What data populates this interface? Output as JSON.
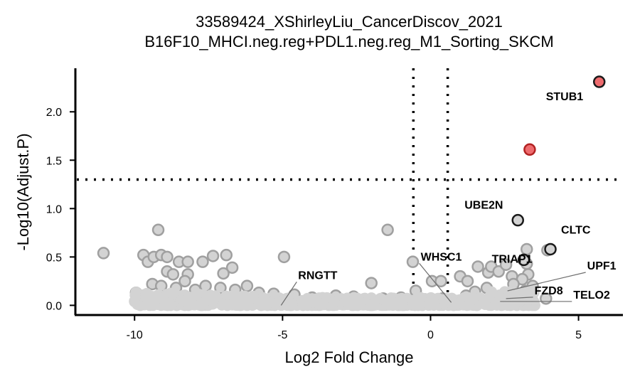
{
  "chart_data": {
    "type": "scatter",
    "title": "33589424_XShirleyLiu_CancerDiscov_2021",
    "subtitle": "B16F10_MHCI.neg.reg+PDL1.neg.reg_M1_Sorting_SKCM",
    "xlabel": "Log2 Fold Change",
    "ylabel": "-Log10(Adjust.P)",
    "xlim": [
      -12,
      6.5
    ],
    "ylim": [
      -0.1,
      2.45
    ],
    "x_ticks": [
      "-10",
      "-5",
      "0",
      "5"
    ],
    "x_tick_values": [
      -10,
      -5,
      0,
      5
    ],
    "y_ticks": [
      "0.0",
      "0.5",
      "1.0",
      "1.5",
      "2.0"
    ],
    "y_tick_values": [
      0,
      0.5,
      1.0,
      1.5,
      2.0
    ],
    "thresholds": {
      "x": [
        -0.58,
        0.58
      ],
      "y": 1.3
    },
    "colors": {
      "significant_fill": "#ee6b6e",
      "significant_edge": "#b22222",
      "labeled_fill": "#d3d3d3",
      "labeled_edge": "#1a1a1a",
      "background_fill": "#d3d3d3",
      "background_edge": "#a0a0a0"
    },
    "significant_points": [
      {
        "x": 5.7,
        "y": 2.31,
        "label": "STUB1"
      },
      {
        "x": 3.35,
        "y": 1.61,
        "label": ""
      }
    ],
    "labeled_points": [
      {
        "x": 2.95,
        "y": 0.88,
        "label": "UBE2N"
      },
      {
        "x": 4.05,
        "y": 0.58,
        "label": "CLTC"
      },
      {
        "x": 3.15,
        "y": 0.47,
        "label": "TRIAP1"
      },
      {
        "x": 2.6,
        "y": 0.15,
        "label": "UPF1"
      },
      {
        "x": 2.55,
        "y": 0.07,
        "label": "FZD8"
      },
      {
        "x": 2.35,
        "y": 0.04,
        "label": "TELO2"
      },
      {
        "x": 0.7,
        "y": 0.03,
        "label": "WHSC1"
      },
      {
        "x": -5.05,
        "y": 0.0,
        "label": "RNGTT"
      }
    ],
    "background_points": [
      [
        -11.05,
        0.54
      ],
      [
        -9.2,
        0.78
      ],
      [
        -9.7,
        0.52
      ],
      [
        -9.55,
        0.45
      ],
      [
        -9.35,
        0.5
      ],
      [
        -9.1,
        0.52
      ],
      [
        -8.9,
        0.5
      ],
      [
        -8.5,
        0.45
      ],
      [
        -8.2,
        0.45
      ],
      [
        -7.7,
        0.45
      ],
      [
        -7.35,
        0.51
      ],
      [
        -6.9,
        0.52
      ],
      [
        -6.7,
        0.39
      ],
      [
        -7.0,
        0.33
      ],
      [
        -8.9,
        0.35
      ],
      [
        -8.7,
        0.32
      ],
      [
        -8.2,
        0.32
      ],
      [
        -4.95,
        0.5
      ],
      [
        -1.45,
        0.78
      ],
      [
        -0.6,
        0.45
      ],
      [
        -0.5,
        0.15
      ],
      [
        -2.0,
        0.23
      ],
      [
        0.05,
        0.25
      ],
      [
        0.35,
        0.25
      ],
      [
        1.0,
        0.3
      ],
      [
        1.25,
        0.25
      ],
      [
        1.6,
        0.4
      ],
      [
        1.95,
        0.34
      ],
      [
        2.05,
        0.4
      ],
      [
        2.3,
        0.35
      ],
      [
        2.55,
        0.42
      ],
      [
        2.75,
        0.3
      ],
      [
        3.25,
        0.43
      ],
      [
        3.25,
        0.58
      ],
      [
        3.95,
        0.57
      ],
      [
        3.3,
        0.32
      ],
      [
        3.1,
        0.27
      ],
      [
        3.45,
        0.2
      ],
      [
        3.2,
        0.15
      ],
      [
        3.0,
        0.12
      ],
      [
        2.8,
        0.22
      ],
      [
        3.9,
        0.07
      ],
      [
        3.2,
        0.05
      ],
      [
        2.7,
        0.04
      ],
      [
        2.1,
        0.08
      ],
      [
        1.9,
        0.18
      ],
      [
        -9.95,
        0.13
      ],
      [
        -9.8,
        0.1
      ],
      [
        -9.4,
        0.22
      ],
      [
        -9.1,
        0.2
      ],
      [
        -8.6,
        0.18
      ],
      [
        -8.3,
        0.25
      ],
      [
        -7.95,
        0.16
      ],
      [
        -7.6,
        0.2
      ],
      [
        -7.1,
        0.18
      ],
      [
        -6.6,
        0.16
      ],
      [
        -6.2,
        0.2
      ],
      [
        -5.8,
        0.13
      ],
      [
        -5.3,
        0.12
      ],
      [
        -4.6,
        0.11
      ],
      [
        -4.0,
        0.08
      ],
      [
        -3.2,
        0.1
      ],
      [
        -2.6,
        0.09
      ],
      [
        -1.6,
        0.07
      ],
      [
        -1.0,
        0.08
      ],
      [
        -0.3,
        0.05
      ],
      [
        0.4,
        0.07
      ],
      [
        1.2,
        0.1
      ],
      [
        1.5,
        0.14
      ]
    ]
  }
}
